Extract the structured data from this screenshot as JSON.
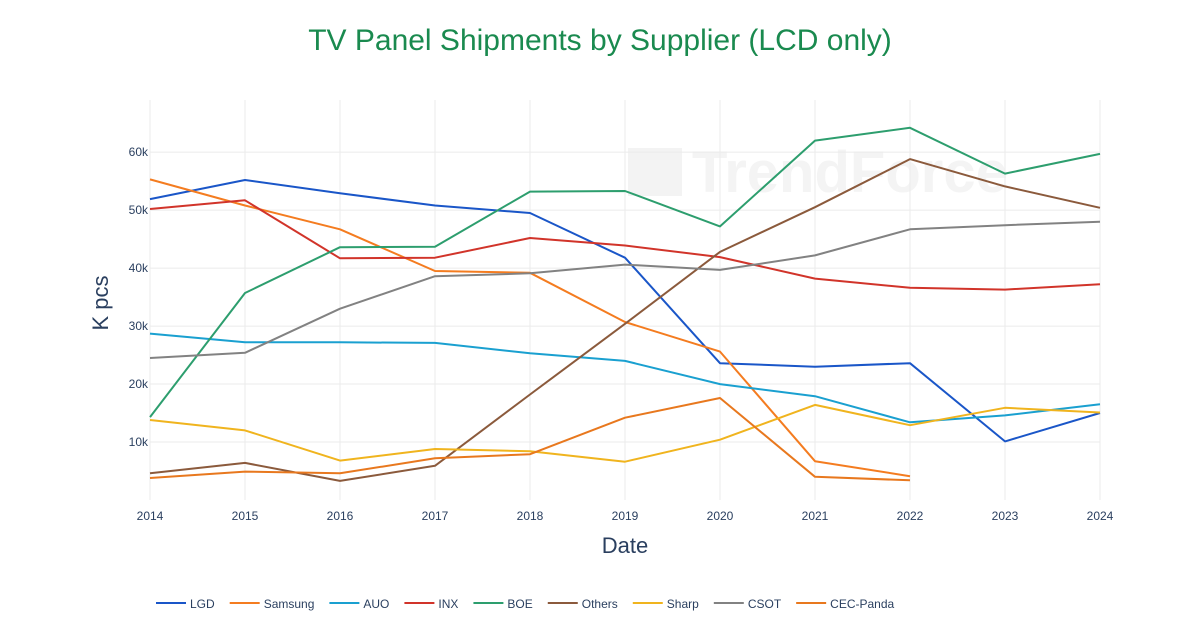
{
  "chart_data": {
    "type": "line",
    "title": "TV Panel Shipments by Supplier (LCD only)",
    "title_color": "#1a8a4f",
    "xlabel": "Date",
    "ylabel": "K pcs",
    "x": [
      2014,
      2015,
      2016,
      2017,
      2018,
      2019,
      2020,
      2021,
      2022,
      2023,
      2024
    ],
    "x_tick_labels": [
      "2014",
      "2015",
      "2016",
      "2017",
      "2018",
      "2019",
      "2020",
      "2021",
      "2022",
      "2023",
      "2024"
    ],
    "xlim": [
      2014,
      2024
    ],
    "ylim": [
      0,
      69000
    ],
    "y_ticks": [
      10000,
      20000,
      30000,
      40000,
      50000,
      60000
    ],
    "y_tick_labels": [
      "10k",
      "20k",
      "30k",
      "40k",
      "50k",
      "60k"
    ],
    "grid": true,
    "legend_position": "bottom",
    "watermark": "TrendForce",
    "series": [
      {
        "name": "LGD",
        "color": "#1a56c8",
        "values": [
          51900,
          55200,
          52900,
          50800,
          49500,
          41800,
          23600,
          23000,
          23600,
          10100,
          15000
        ]
      },
      {
        "name": "Samsung",
        "color": "#f47c20",
        "values": [
          55300,
          50800,
          46700,
          39500,
          39200,
          30700,
          25600,
          6700,
          4100,
          null,
          null
        ]
      },
      {
        "name": "AUO",
        "color": "#1aa0d0",
        "values": [
          28700,
          27200,
          27200,
          27100,
          25300,
          24000,
          20000,
          17900,
          13400,
          14600,
          16500
        ]
      },
      {
        "name": "INX",
        "color": "#d1342a",
        "values": [
          50200,
          51700,
          41700,
          41800,
          45200,
          43900,
          41900,
          38200,
          36600,
          36300,
          37200
        ]
      },
      {
        "name": "BOE",
        "color": "#2d9e6e",
        "values": [
          14300,
          35700,
          43600,
          43700,
          53200,
          53300,
          47200,
          62000,
          64200,
          56300,
          59700
        ]
      },
      {
        "name": "Others",
        "color": "#8b5a3c",
        "values": [
          4600,
          6400,
          3300,
          5900,
          18200,
          30400,
          42800,
          50500,
          58800,
          54100,
          50400
        ]
      },
      {
        "name": "Sharp",
        "color": "#f0b41e",
        "values": [
          13800,
          12000,
          6800,
          8800,
          8400,
          6600,
          10400,
          16400,
          12900,
          15900,
          15100
        ]
      },
      {
        "name": "CSOT",
        "color": "#828282",
        "values": [
          24500,
          25400,
          33000,
          38600,
          39100,
          40600,
          39700,
          42200,
          46700,
          47400,
          48000
        ]
      },
      {
        "name": "CEC-Panda",
        "color": "#e8781e",
        "values": [
          3800,
          4900,
          4600,
          7200,
          7900,
          14200,
          17600,
          4000,
          3400,
          null,
          null
        ]
      }
    ]
  }
}
